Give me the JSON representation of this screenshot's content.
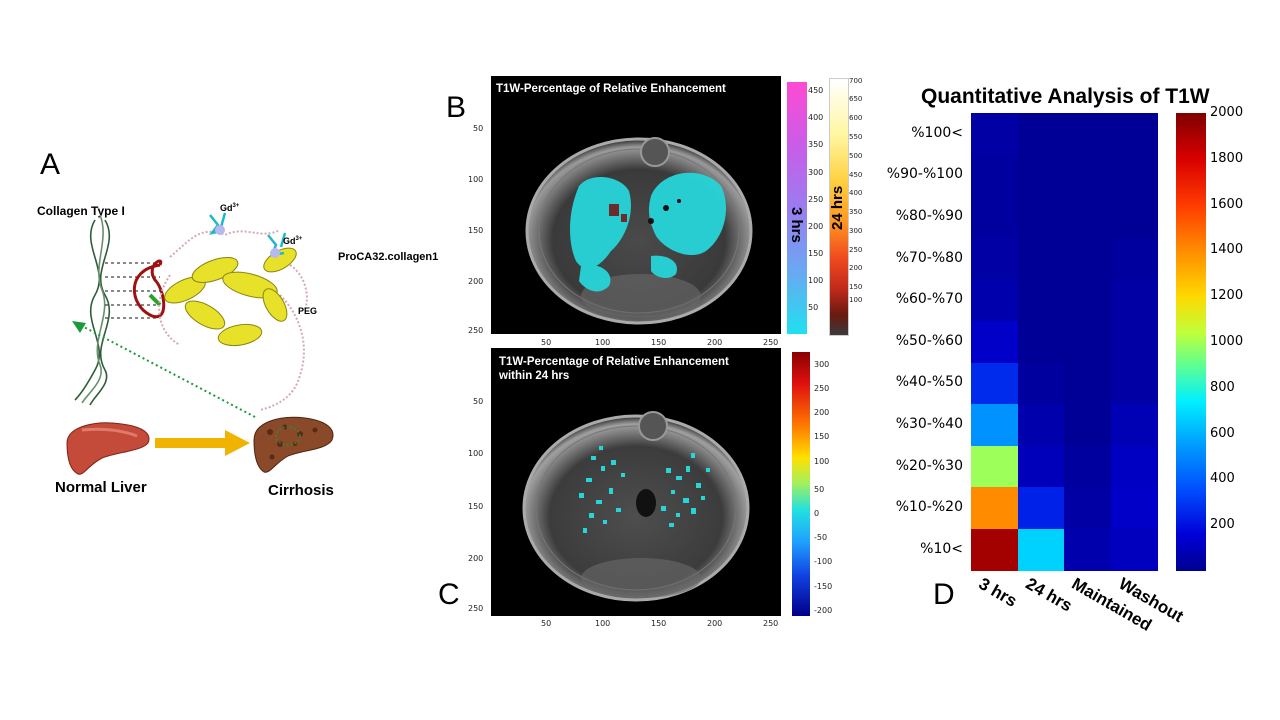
{
  "panels": {
    "a": "A",
    "b": "B",
    "c": "C",
    "d": "D"
  },
  "panel_a": {
    "collagen_label": "Collagen Type I",
    "gd_label_1": "Gd",
    "gd_sup_1": "3+",
    "gd_label_2": "Gd",
    "gd_sup_2": "3+",
    "agent_label": "ProCA32.collagen1",
    "peg_label": "PEG",
    "normal_label": "Normal Liver",
    "cirrhosis_label": "Cirrhosis"
  },
  "panel_b": {
    "title": "T1W-Percentage of Relative Enhancement",
    "y_ticks": [
      "50",
      "100",
      "150",
      "200",
      "250"
    ],
    "cbar1_ticks": [
      "450",
      "400",
      "350",
      "300",
      "250",
      "200",
      "150",
      "100",
      "50"
    ],
    "cbar1_label": "3 hrs",
    "cbar2_ticks": [
      "700",
      "650",
      "600",
      "550",
      "500",
      "450",
      "400",
      "350",
      "300",
      "250",
      "200",
      "150",
      "100"
    ],
    "cbar2_label": "24 hrs"
  },
  "panel_c": {
    "title_line1": "T1W-Percentage of Relative Enhancement",
    "title_line2": "within 24 hrs",
    "y_ticks": [
      "50",
      "100",
      "150",
      "200",
      "250"
    ],
    "x_ticks": [
      "50",
      "100",
      "150",
      "200",
      "250"
    ],
    "cbar_ticks": [
      "300",
      "250",
      "200",
      "150",
      "100",
      "50",
      "0",
      "-50",
      "-100",
      "-150",
      "-200"
    ]
  },
  "shared_x_ticks": [
    "50",
    "100",
    "150",
    "200",
    "250"
  ],
  "chart_data": {
    "type": "heatmap",
    "title": "Quantitative Analysis of T1W",
    "row_labels": [
      "%100<",
      "%90-%100",
      "%80-%90",
      "%70-%80",
      "%60-%70",
      "%50-%60",
      "%40-%50",
      "%30-%40",
      "%20-%30",
      "%10-%20",
      "%10<"
    ],
    "col_labels": [
      "3 hrs",
      "24 hrs",
      "Maintained",
      "Washout"
    ],
    "values": [
      [
        60,
        20,
        20,
        20
      ],
      [
        40,
        20,
        20,
        20
      ],
      [
        40,
        20,
        20,
        20
      ],
      [
        60,
        20,
        20,
        40
      ],
      [
        80,
        20,
        20,
        60
      ],
      [
        160,
        20,
        20,
        60
      ],
      [
        330,
        40,
        20,
        60
      ],
      [
        640,
        80,
        20,
        100
      ],
      [
        1100,
        120,
        40,
        140
      ],
      [
        1560,
        300,
        60,
        160
      ],
      [
        1960,
        780,
        80,
        130
      ]
    ],
    "colorbar_range": [
      0,
      2000
    ],
    "colorbar_ticks": [
      "2000",
      "1800",
      "1600",
      "1400",
      "1200",
      "1000",
      "800",
      "600",
      "400",
      "200"
    ]
  }
}
